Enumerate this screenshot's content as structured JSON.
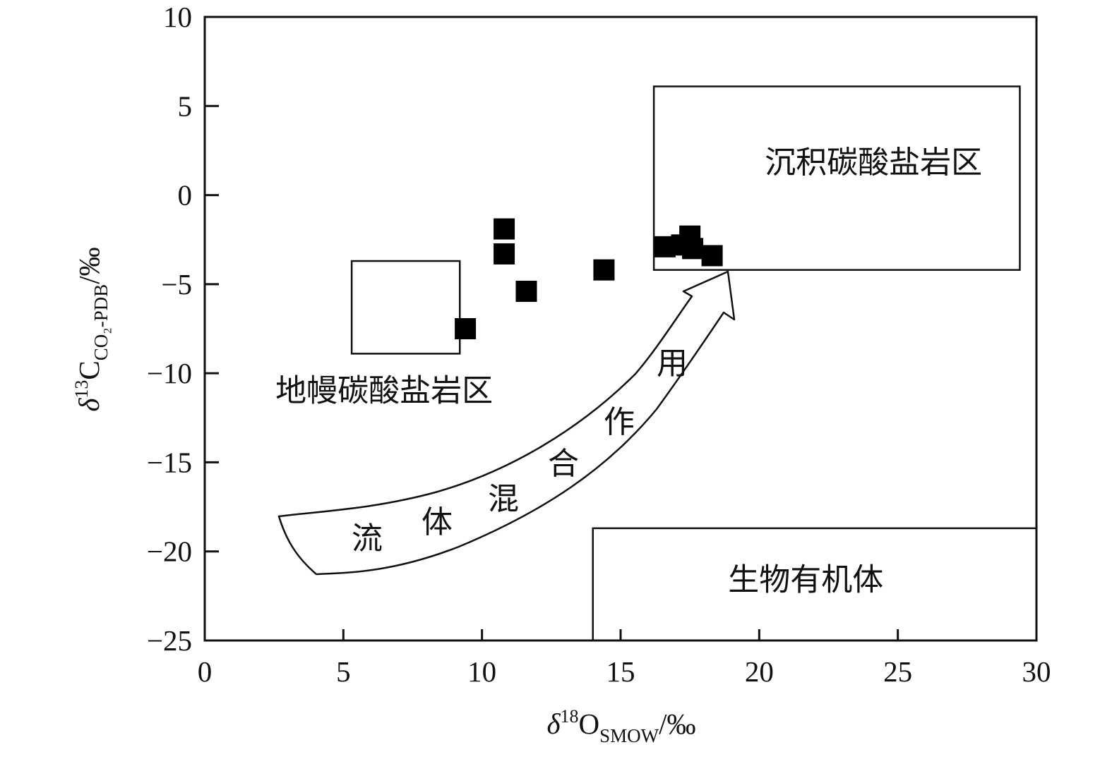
{
  "chart_data": {
    "type": "scatter",
    "xlabel": {
      "main": "δ",
      "sup": "18",
      "elem": "O",
      "sub": "SMOW",
      "unit": "/‰"
    },
    "ylabel": {
      "main": "δ",
      "sup": "13",
      "elem": "C",
      "sub": "CO₂-PDB",
      "unit": "/‰"
    },
    "xlim": [
      0,
      30
    ],
    "ylim": [
      -25,
      10
    ],
    "x_ticks": [
      0,
      5,
      10,
      15,
      20,
      25,
      30
    ],
    "y_ticks": [
      10,
      5,
      0,
      -5,
      -10,
      -15,
      -20,
      -25
    ],
    "x_tick_labels": [
      "0",
      "5",
      "10",
      "15",
      "20",
      "25",
      "30"
    ],
    "y_tick_labels": [
      "10",
      "5",
      "0",
      "−5",
      "−10",
      "−15",
      "−20",
      "−25"
    ],
    "grid": false,
    "marker": "filled-square",
    "points": [
      {
        "x": 10.8,
        "y": -1.9
      },
      {
        "x": 10.8,
        "y": -3.3
      },
      {
        "x": 11.6,
        "y": -5.4
      },
      {
        "x": 9.4,
        "y": -7.5
      },
      {
        "x": 14.4,
        "y": -4.2
      },
      {
        "x": 16.6,
        "y": -2.9
      },
      {
        "x": 17.2,
        "y": -2.8
      },
      {
        "x": 17.5,
        "y": -2.3
      },
      {
        "x": 17.6,
        "y": -3.0
      },
      {
        "x": 18.3,
        "y": -3.4
      }
    ],
    "regions": [
      {
        "label": "沉积碳酸盐岩区",
        "x": [
          16.2,
          29.4
        ],
        "y": [
          -4.2,
          6.1
        ]
      },
      {
        "label": "地幔碳酸盐岩区",
        "x": [
          5.3,
          9.2
        ],
        "y": [
          -8.9,
          -3.7
        ]
      },
      {
        "label": "生物有机体",
        "x": [
          14.0,
          30.0
        ],
        "y": [
          -25.0,
          -18.7
        ]
      }
    ],
    "arrow_label_chars": [
      "流",
      "体",
      "混",
      "合",
      "作",
      "用"
    ]
  }
}
